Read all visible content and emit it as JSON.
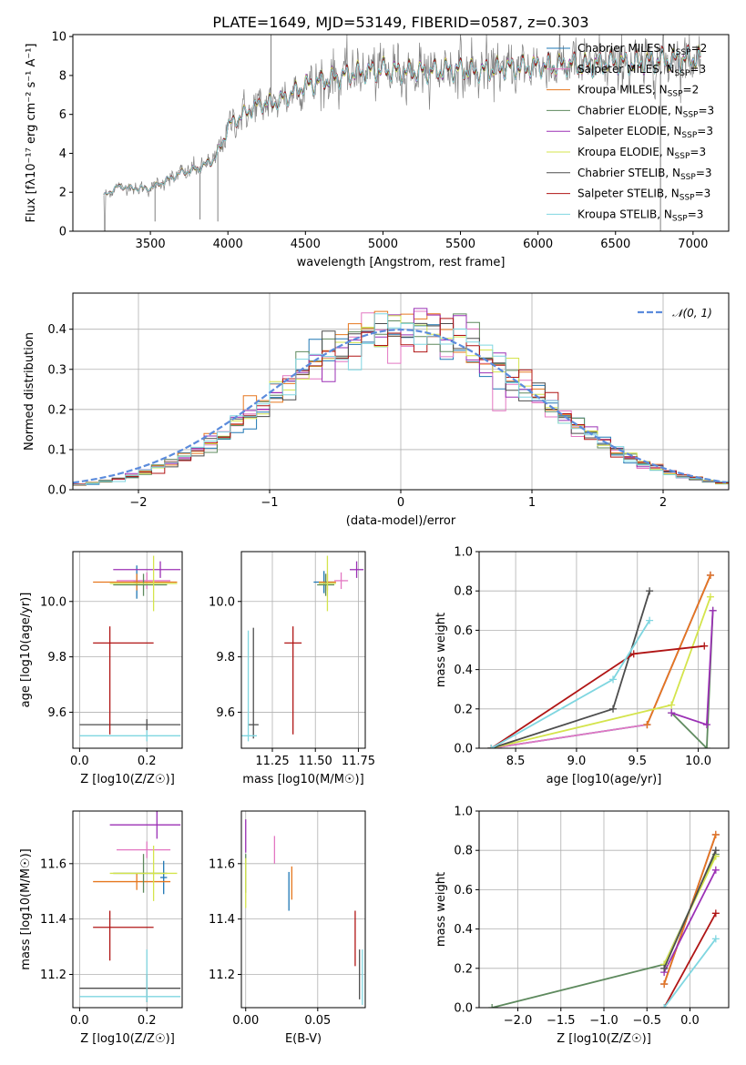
{
  "title": "PLATE=1649, MJD=53149, FIBERID=0587, z=0.303",
  "colors": {
    "Chabrier MILES": "#1f77b4",
    "Salpeter MILES": "#e377c2",
    "Kroupa MILES": "#e6771e",
    "Chabrier ELODIE": "#5e8a5e",
    "Salpeter ELODIE": "#9b30b5",
    "Kroupa ELODIE": "#d4e44c",
    "Chabrier STELIB": "#4d4d4d",
    "Salpeter STELIB": "#b01515",
    "Kroupa STELIB": "#7fd6e0",
    "gaussian": "#5b8bdc",
    "data": "#808080"
  },
  "chart_data": [
    {
      "id": "spectrum",
      "type": "line",
      "title": "PLATE=1649, MJD=53149, FIBERID=0587, z=0.303",
      "xlabel": "wavelength [Angstrom, rest frame]",
      "ylabel": "Flux [fλ10⁻¹⁷ erg cm⁻² s⁻¹ A⁻¹]",
      "xlim": [
        3000,
        7230
      ],
      "ylim": [
        0,
        10.1
      ],
      "xticks": [
        3500,
        4000,
        4500,
        5000,
        5500,
        6000,
        6500,
        7000
      ],
      "yticks": [
        0,
        2,
        4,
        6,
        8,
        10
      ],
      "legend_position": "upper-right",
      "legend": [
        "Chabrier MILES, N_SSP=2",
        "Salpeter MILES, N_SSP=3",
        "Kroupa MILES, N_SSP=2",
        "Chabrier ELODIE, N_SSP=3",
        "Salpeter ELODIE, N_SSP=3",
        "Kroupa ELODIE, N_SSP=3",
        "Chabrier STELIB, N_SSP=3",
        "Salpeter STELIB, N_SSP=3",
        "Kroupa STELIB, N_SSP=3"
      ],
      "continuum_x": [
        3200,
        3250,
        3300,
        3400,
        3500,
        3600,
        3700,
        3800,
        3900,
        3960,
        4000,
        4100,
        4200,
        4300,
        4400,
        4500,
        4600,
        4700,
        4800,
        4900,
        5000,
        5100,
        5200,
        5300,
        5400,
        5500,
        5600,
        5700,
        5800,
        5900,
        6000,
        6100,
        6200,
        6300,
        6400,
        6500,
        6600,
        6700,
        6800,
        6900,
        7000,
        7050
      ],
      "continuum_y": [
        1.8,
        2.1,
        2.3,
        2.2,
        2.2,
        2.6,
        3.0,
        3.2,
        3.6,
        4.4,
        5.4,
        6.0,
        6.5,
        6.6,
        7.0,
        7.5,
        7.7,
        7.9,
        8.1,
        8.2,
        8.3,
        8.2,
        8.2,
        8.2,
        8.3,
        8.3,
        8.2,
        8.3,
        8.4,
        8.4,
        8.5,
        8.5,
        8.6,
        8.5,
        8.6,
        8.7,
        8.6,
        8.7,
        8.8,
        8.8,
        8.9,
        8.9
      ]
    },
    {
      "id": "residuals",
      "type": "line",
      "xlabel": "(data-model)/error",
      "ylabel": "Normed distribution",
      "xlim": [
        -2.5,
        2.5
      ],
      "ylim": [
        0,
        0.49
      ],
      "xticks": [
        -2,
        -1,
        0,
        1,
        2
      ],
      "yticks": [
        0.0,
        0.1,
        0.2,
        0.3,
        0.4
      ],
      "legend": [
        "𝒩(0, 1)"
      ],
      "legend_position": "upper-right",
      "bin_width": 0.1
    },
    {
      "id": "z-age",
      "type": "scatter",
      "xlabel": "Z [log10(Z/Z☉)]",
      "ylabel": "age  [log10(age/yr)]",
      "xlim": [
        -0.02,
        0.305
      ],
      "ylim": [
        9.47,
        10.18
      ],
      "xticks": [
        0.0,
        0.2
      ],
      "yticks": [
        9.6,
        9.8,
        10.0
      ],
      "points": [
        {
          "model": "Chabrier MILES",
          "x": 0.17,
          "y": 10.07,
          "xerr": [
            0.01,
            0.01
          ],
          "yerr": [
            0.06,
            0.06
          ]
        },
        {
          "model": "Salpeter MILES",
          "x": 0.2,
          "y": 10.075,
          "xerr": [
            0.09,
            0.07
          ],
          "yerr": [
            0.03,
            0.03
          ]
        },
        {
          "model": "Kroupa MILES",
          "x": 0.17,
          "y": 10.07,
          "xerr": [
            0.13,
            0.12
          ],
          "yerr": [
            0.03,
            0.03
          ]
        },
        {
          "model": "Chabrier ELODIE",
          "x": 0.19,
          "y": 10.06,
          "xerr": [
            0.09,
            0.07
          ],
          "yerr": [
            0.04,
            0.04
          ]
        },
        {
          "model": "Salpeter ELODIE",
          "x": 0.24,
          "y": 10.115,
          "xerr": [
            0.14,
            0.06
          ],
          "yerr": [
            0.03,
            0.03
          ]
        },
        {
          "model": "Kroupa ELODIE",
          "x": 0.22,
          "y": 10.065,
          "xerr": [
            0.13,
            0.07
          ],
          "yerr": [
            0.1,
            0.1
          ]
        },
        {
          "model": "Chabrier STELIB",
          "x": 0.2,
          "y": 9.555,
          "xerr": [
            0.2,
            0.1
          ],
          "yerr": [
            0.02,
            0.02
          ]
        },
        {
          "model": "Salpeter STELIB",
          "x": 0.09,
          "y": 9.85,
          "xerr": [
            0.05,
            0.13
          ],
          "yerr": [
            0.33,
            0.06
          ]
        },
        {
          "model": "Kroupa STELIB",
          "x": 0.2,
          "y": 9.515,
          "xerr": [
            0.2,
            0.1
          ],
          "yerr": [
            0.02,
            0.02
          ]
        }
      ]
    },
    {
      "id": "mass-age",
      "type": "scatter",
      "xlabel": "mass [log10(M/M☉)]",
      "ylabel": "",
      "xlim": [
        11.07,
        11.79
      ],
      "ylim": [
        9.47,
        10.18
      ],
      "xticks": [
        11.25,
        11.5,
        11.75
      ],
      "yticks": [
        9.6,
        9.8,
        10.0
      ],
      "points": [
        {
          "model": "Chabrier MILES",
          "x": 11.55,
          "y": 10.07,
          "xerr": [
            0.06,
            0.06
          ],
          "yerr": [
            0.04,
            0.04
          ]
        },
        {
          "model": "Salpeter MILES",
          "x": 11.65,
          "y": 10.075,
          "xerr": [
            0.04,
            0.04
          ],
          "yerr": [
            0.03,
            0.03
          ]
        },
        {
          "model": "Kroupa MILES",
          "x": 11.57,
          "y": 10.07,
          "xerr": [
            0.05,
            0.05
          ],
          "yerr": [
            0.03,
            0.03
          ]
        },
        {
          "model": "Chabrier ELODIE",
          "x": 11.56,
          "y": 10.06,
          "xerr": [
            0.05,
            0.05
          ],
          "yerr": [
            0.04,
            0.04
          ]
        },
        {
          "model": "Salpeter ELODIE",
          "x": 11.74,
          "y": 10.115,
          "xerr": [
            0.04,
            0.04
          ],
          "yerr": [
            0.03,
            0.03
          ]
        },
        {
          "model": "Kroupa ELODIE",
          "x": 11.57,
          "y": 10.065,
          "xerr": [
            0.05,
            0.05
          ],
          "yerr": [
            0.1,
            0.1
          ]
        },
        {
          "model": "Chabrier STELIB",
          "x": 11.14,
          "y": 9.555,
          "xerr": [
            0.03,
            0.03
          ],
          "yerr": [
            0.05,
            0.35
          ]
        },
        {
          "model": "Salpeter STELIB",
          "x": 11.37,
          "y": 9.85,
          "xerr": [
            0.05,
            0.05
          ],
          "yerr": [
            0.33,
            0.06
          ]
        },
        {
          "model": "Kroupa STELIB",
          "x": 11.11,
          "y": 9.515,
          "xerr": [
            0.05,
            0.05
          ],
          "yerr": [
            0.02,
            0.38
          ]
        }
      ]
    },
    {
      "id": "age-weight",
      "type": "line",
      "xlabel": "age  [log10(age/yr)]",
      "ylabel": "mass weight",
      "xlim": [
        8.2,
        10.25
      ],
      "ylim": [
        0,
        1.0
      ],
      "xticks": [
        8.5,
        9.0,
        9.5,
        10.0
      ],
      "yticks": [
        0.0,
        0.2,
        0.4,
        0.6,
        0.8,
        1.0
      ],
      "series": [
        {
          "model": "Chabrier MILES",
          "x": [
            8.3,
            9.58,
            10.1
          ],
          "y": [
            0.0,
            0.12,
            0.88
          ]
        },
        {
          "model": "Salpeter MILES",
          "x": [
            8.3,
            9.58,
            10.1
          ],
          "y": [
            0.0,
            0.12,
            0.88
          ]
        },
        {
          "model": "Kroupa MILES",
          "x": [
            9.58,
            10.1
          ],
          "y": [
            0.12,
            0.88
          ]
        },
        {
          "model": "Chabrier ELODIE",
          "x": [
            9.78,
            10.07,
            10.12
          ],
          "y": [
            0.18,
            0.0,
            0.7
          ]
        },
        {
          "model": "Salpeter ELODIE",
          "x": [
            9.78,
            10.07,
            10.12
          ],
          "y": [
            0.18,
            0.12,
            0.7
          ]
        },
        {
          "model": "Kroupa ELODIE",
          "x": [
            8.3,
            9.78,
            10.1
          ],
          "y": [
            0.0,
            0.22,
            0.77
          ]
        },
        {
          "model": "Chabrier STELIB",
          "x": [
            8.3,
            9.3,
            9.6
          ],
          "y": [
            0.0,
            0.2,
            0.8
          ]
        },
        {
          "model": "Salpeter STELIB",
          "x": [
            8.3,
            9.47,
            10.05
          ],
          "y": [
            0.0,
            0.48,
            0.52
          ]
        },
        {
          "model": "Kroupa STELIB",
          "x": [
            8.3,
            9.3,
            9.6
          ],
          "y": [
            0.0,
            0.35,
            0.65
          ]
        }
      ]
    },
    {
      "id": "z-mass",
      "type": "scatter",
      "xlabel": "Z [log10(Z/Z☉)]",
      "ylabel": "mass [log10(M/M☉)]",
      "xlim": [
        -0.02,
        0.305
      ],
      "ylim": [
        11.08,
        11.79
      ],
      "xticks": [
        0.0,
        0.2
      ],
      "yticks": [
        11.2,
        11.4,
        11.6
      ],
      "points": [
        {
          "model": "Chabrier MILES",
          "x": 0.25,
          "y": 11.55,
          "xerr": [
            0.01,
            0.01
          ],
          "yerr": [
            0.06,
            0.06
          ]
        },
        {
          "model": "Salpeter MILES",
          "x": 0.2,
          "y": 11.65,
          "xerr": [
            0.09,
            0.07
          ],
          "yerr": [
            0.03,
            0.03
          ]
        },
        {
          "model": "Kroupa MILES",
          "x": 0.17,
          "y": 11.535,
          "xerr": [
            0.13,
            0.1
          ],
          "yerr": [
            0.03,
            0.03
          ]
        },
        {
          "model": "Chabrier ELODIE",
          "x": 0.19,
          "y": 11.565,
          "xerr": [
            0.09,
            0.07
          ],
          "yerr": [
            0.07,
            0.07
          ]
        },
        {
          "model": "Salpeter ELODIE",
          "x": 0.23,
          "y": 11.74,
          "xerr": [
            0.14,
            0.07
          ],
          "yerr": [
            0.05,
            0.05
          ]
        },
        {
          "model": "Kroupa ELODIE",
          "x": 0.22,
          "y": 11.565,
          "xerr": [
            0.13,
            0.07
          ],
          "yerr": [
            0.1,
            0.1
          ]
        },
        {
          "model": "Chabrier STELIB",
          "x": 0.2,
          "y": 11.15,
          "xerr": [
            0.2,
            0.1
          ],
          "yerr": [
            0.05,
            0.05
          ]
        },
        {
          "model": "Salpeter STELIB",
          "x": 0.09,
          "y": 11.37,
          "xerr": [
            0.05,
            0.13
          ],
          "yerr": [
            0.12,
            0.06
          ]
        },
        {
          "model": "Kroupa STELIB",
          "x": 0.2,
          "y": 11.12,
          "xerr": [
            0.2,
            0.1
          ],
          "yerr": [
            0.02,
            0.17
          ]
        }
      ]
    },
    {
      "id": "ebv-mass",
      "type": "scatter",
      "xlabel": "E(B-V)",
      "ylabel": "",
      "xlim": [
        -0.003,
        0.083
      ],
      "ylim": [
        11.08,
        11.79
      ],
      "xticks": [
        0.0,
        0.05
      ],
      "yticks": [
        11.2,
        11.4,
        11.6
      ],
      "points": [
        {
          "model": "Chabrier MILES",
          "x": 0.03,
          "y": 11.5,
          "yerr": [
            0.07,
            0.07
          ]
        },
        {
          "model": "Salpeter MILES",
          "x": 0.02,
          "y": 11.65,
          "yerr": [
            0.05,
            0.05
          ]
        },
        {
          "model": "Kroupa MILES",
          "x": 0.032,
          "y": 11.53,
          "yerr": [
            0.06,
            0.06
          ]
        },
        {
          "model": "Chabrier ELODIE",
          "x": 0.0,
          "y": 11.565,
          "yerr": [
            0.07,
            0.07
          ]
        },
        {
          "model": "Salpeter ELODIE",
          "x": 0.0,
          "y": 11.7,
          "yerr": [
            0.06,
            0.06
          ]
        },
        {
          "model": "Kroupa ELODIE",
          "x": 0.0,
          "y": 11.53,
          "yerr": [
            0.09,
            0.09
          ]
        },
        {
          "model": "Chabrier STELIB",
          "x": 0.079,
          "y": 11.2,
          "yerr": [
            0.09,
            0.09
          ]
        },
        {
          "model": "Salpeter STELIB",
          "x": 0.076,
          "y": 11.33,
          "yerr": [
            0.1,
            0.1
          ]
        },
        {
          "model": "Kroupa STELIB",
          "x": 0.081,
          "y": 11.19,
          "yerr": [
            0.1,
            0.1
          ]
        }
      ]
    },
    {
      "id": "z-weight",
      "type": "line",
      "xlabel": "Z [log10(Z/Z☉)]",
      "ylabel": "mass weight",
      "xlim": [
        -2.45,
        0.45
      ],
      "ylim": [
        0,
        1.0
      ],
      "xticks": [
        -2.0,
        -1.5,
        -1.0,
        -0.5,
        0.0
      ],
      "yticks": [
        0.0,
        0.2,
        0.4,
        0.6,
        0.8,
        1.0
      ],
      "series": [
        {
          "model": "Chabrier MILES",
          "x": [
            -0.3,
            0.3
          ],
          "y": [
            0.12,
            0.88
          ]
        },
        {
          "model": "Salpeter MILES",
          "x": [
            -0.3,
            0.3
          ],
          "y": [
            0.12,
            0.88
          ]
        },
        {
          "model": "Kroupa MILES",
          "x": [
            -0.3,
            0.3
          ],
          "y": [
            0.12,
            0.88
          ]
        },
        {
          "model": "Chabrier ELODIE",
          "x": [
            -2.3,
            -0.3,
            0.3
          ],
          "y": [
            0.0,
            0.22,
            0.78
          ]
        },
        {
          "model": "Salpeter ELODIE",
          "x": [
            -0.3,
            0.3
          ],
          "y": [
            0.18,
            0.7
          ]
        },
        {
          "model": "Kroupa ELODIE",
          "x": [
            -0.3,
            0.3
          ],
          "y": [
            0.22,
            0.77
          ]
        },
        {
          "model": "Chabrier STELIB",
          "x": [
            -0.3,
            0.3
          ],
          "y": [
            0.2,
            0.8
          ]
        },
        {
          "model": "Salpeter STELIB",
          "x": [
            -0.3,
            0.3
          ],
          "y": [
            0.0,
            0.48
          ]
        },
        {
          "model": "Kroupa STELIB",
          "x": [
            -0.3,
            0.3
          ],
          "y": [
            0.0,
            0.35
          ]
        }
      ]
    }
  ]
}
